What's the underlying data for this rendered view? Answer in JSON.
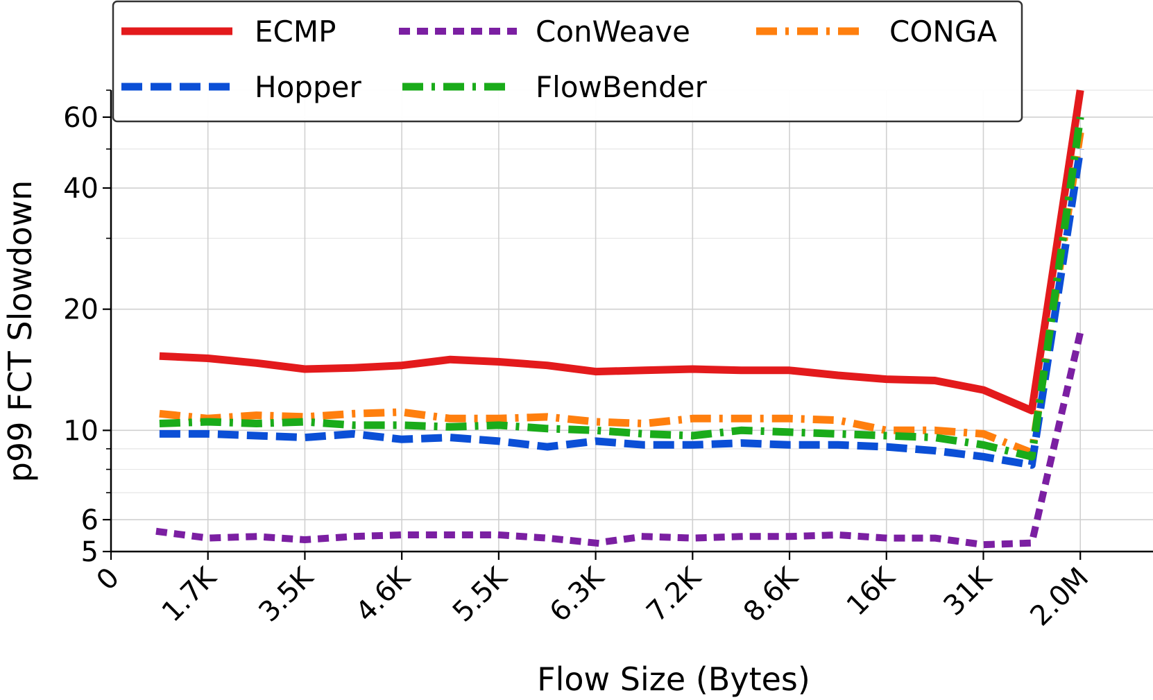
{
  "chart_data": {
    "type": "line",
    "title": "",
    "xlabel": "Flow Size (Bytes)",
    "ylabel": "p99 FCT Slowdown",
    "y_scale": "log",
    "ylim": [
      5,
      70
    ],
    "xlim": [
      0,
      21.5
    ],
    "x_ticks": [
      {
        "pos": 0,
        "label": "0"
      },
      {
        "pos": 2,
        "label": "1.7K"
      },
      {
        "pos": 4,
        "label": "3.5K"
      },
      {
        "pos": 6,
        "label": "4.6K"
      },
      {
        "pos": 8,
        "label": "5.5K"
      },
      {
        "pos": 10,
        "label": "6.3K"
      },
      {
        "pos": 12,
        "label": "7.2K"
      },
      {
        "pos": 14,
        "label": "8.6K"
      },
      {
        "pos": 16,
        "label": "16K"
      },
      {
        "pos": 18,
        "label": "31K"
      },
      {
        "pos": 20,
        "label": "2.0M"
      }
    ],
    "y_ticks": [
      {
        "value": 5,
        "label": "5"
      },
      {
        "value": 6,
        "label": "6"
      },
      {
        "value": 10,
        "label": "10"
      },
      {
        "value": 20,
        "label": "20"
      },
      {
        "value": 40,
        "label": "40"
      },
      {
        "value": 60,
        "label": "60"
      }
    ],
    "y_minor_ticks": [
      7,
      8,
      9,
      30,
      50,
      70
    ],
    "x": [
      1,
      2,
      3,
      4,
      5,
      6,
      7,
      8,
      9,
      10,
      11,
      12,
      13,
      14,
      15,
      16,
      17,
      18,
      19,
      20
    ],
    "series": [
      {
        "name": "ECMP",
        "color": "#e31a1c",
        "dash": "solid",
        "values": [
          15.3,
          15.1,
          14.7,
          14.2,
          14.3,
          14.5,
          15.0,
          14.8,
          14.5,
          14.0,
          14.1,
          14.2,
          14.1,
          14.1,
          13.7,
          13.4,
          13.3,
          12.6,
          11.2,
          70
        ]
      },
      {
        "name": "ConWeave",
        "color": "#7b1fa2",
        "dash": "dotted",
        "values": [
          5.6,
          5.4,
          5.45,
          5.35,
          5.45,
          5.5,
          5.5,
          5.5,
          5.4,
          5.25,
          5.45,
          5.4,
          5.45,
          5.45,
          5.5,
          5.4,
          5.4,
          5.2,
          5.25,
          17.5
        ]
      },
      {
        "name": "CONGA",
        "color": "#ff7f0e",
        "dash": "dashdot",
        "values": [
          11.0,
          10.7,
          10.9,
          10.8,
          11.0,
          11.1,
          10.7,
          10.7,
          10.8,
          10.5,
          10.4,
          10.7,
          10.7,
          10.7,
          10.6,
          10.0,
          10.0,
          9.8,
          8.8,
          55
        ]
      },
      {
        "name": "Hopper",
        "color": "#0b4fd6",
        "dash": "dashed",
        "values": [
          9.8,
          9.8,
          9.7,
          9.6,
          9.8,
          9.5,
          9.6,
          9.4,
          9.1,
          9.4,
          9.2,
          9.2,
          9.3,
          9.2,
          9.2,
          9.1,
          8.9,
          8.6,
          8.2,
          50
        ]
      },
      {
        "name": "FlowBender",
        "color": "#1aab1a",
        "dash": "dashdot",
        "values": [
          10.4,
          10.5,
          10.4,
          10.5,
          10.3,
          10.3,
          10.2,
          10.3,
          10.1,
          10.0,
          9.8,
          9.7,
          10.0,
          9.9,
          9.8,
          9.7,
          9.6,
          9.2,
          8.6,
          60
        ]
      }
    ],
    "legend": {
      "placement": "top-left",
      "columns": 3
    }
  }
}
